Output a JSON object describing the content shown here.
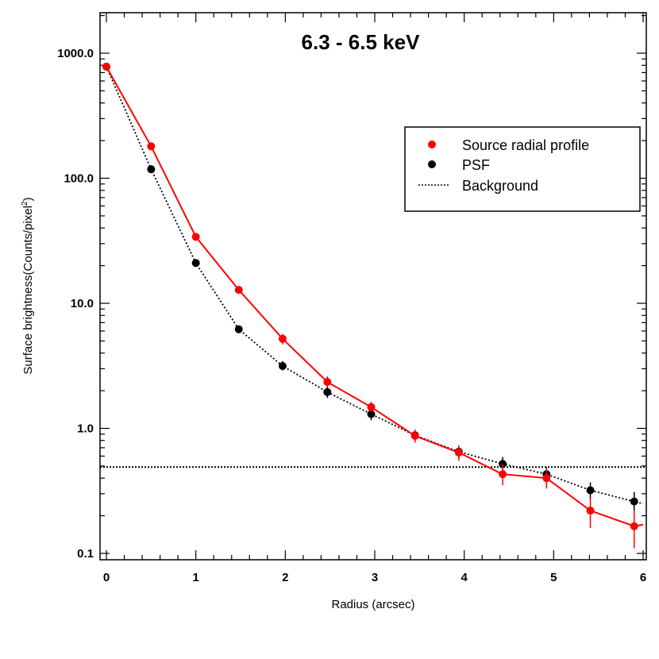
{
  "chart_data": {
    "type": "scatter",
    "title": "6.3 - 6.5 keV",
    "xlabel": "Radius (arcsec)",
    "ylabel_main": "Surface brightness(Counts/pixel",
    "ylabel_sup": "2",
    "ylabel_close": ")",
    "yscale": "log",
    "xlim": [
      0,
      6
    ],
    "ylim": [
      0.1,
      2000
    ],
    "xticks": [
      0,
      1,
      2,
      3,
      4,
      5,
      6
    ],
    "xtick_labels": [
      "0",
      "1",
      "2",
      "3",
      "4",
      "5",
      "6"
    ],
    "yticks": [
      0.1,
      1,
      10,
      100,
      1000
    ],
    "ytick_labels": [
      "0.1",
      "1.0",
      "10.0",
      "100.0",
      "1000.0"
    ],
    "legend_position": "top-right",
    "series": [
      {
        "name": "Source radial profile",
        "color": "#ff0000",
        "style": "solid",
        "marker": "circle",
        "x": [
          0.0,
          0.5,
          1.0,
          1.48,
          1.97,
          2.47,
          2.96,
          3.45,
          3.94,
          4.43,
          4.92,
          5.41,
          5.9,
          6.0
        ],
        "y": [
          780,
          180,
          34,
          12.8,
          5.2,
          2.35,
          1.48,
          0.87,
          0.64,
          0.43,
          0.4,
          0.22,
          0.165,
          0.17
        ],
        "yerr_low": [
          null,
          null,
          null,
          null,
          4.7,
          2.15,
          1.35,
          0.77,
          0.55,
          0.35,
          0.33,
          0.16,
          0.11,
          null
        ],
        "yerr_high": [
          null,
          null,
          null,
          null,
          5.7,
          2.6,
          1.63,
          0.98,
          0.73,
          0.52,
          0.48,
          0.28,
          0.22,
          null
        ],
        "show_marker": [
          true,
          true,
          true,
          true,
          true,
          true,
          true,
          true,
          true,
          true,
          true,
          true,
          true,
          false
        ]
      },
      {
        "name": "PSF",
        "color": "#000000",
        "style": "dotted",
        "marker": "circle",
        "x": [
          0.0,
          0.5,
          1.0,
          1.48,
          1.97,
          2.47,
          2.96,
          3.45,
          3.94,
          4.43,
          4.92,
          5.41,
          5.9,
          6.0
        ],
        "y": [
          780,
          118,
          21,
          6.2,
          3.15,
          1.95,
          1.3,
          0.88,
          0.65,
          0.52,
          0.43,
          0.32,
          0.26,
          0.25
        ],
        "yerr_low": [
          null,
          null,
          null,
          null,
          2.9,
          1.75,
          1.16,
          0.79,
          0.58,
          0.46,
          0.37,
          0.27,
          0.21,
          null
        ],
        "yerr_high": [
          null,
          null,
          null,
          null,
          3.45,
          2.15,
          1.45,
          0.97,
          0.72,
          0.59,
          0.49,
          0.37,
          0.31,
          null
        ],
        "show_marker": [
          true,
          true,
          true,
          true,
          true,
          true,
          true,
          true,
          true,
          true,
          true,
          true,
          true,
          false
        ]
      }
    ],
    "hlines": [
      {
        "name": "Background",
        "y": 0.49,
        "style": "dotted",
        "color": "#000000"
      }
    ],
    "legend": [
      {
        "label": "Source radial profile",
        "kind": "marker",
        "color": "#ff0000"
      },
      {
        "label": "PSF",
        "kind": "marker",
        "color": "#000000"
      },
      {
        "label": "Background",
        "kind": "line",
        "color": "#000000"
      }
    ]
  }
}
